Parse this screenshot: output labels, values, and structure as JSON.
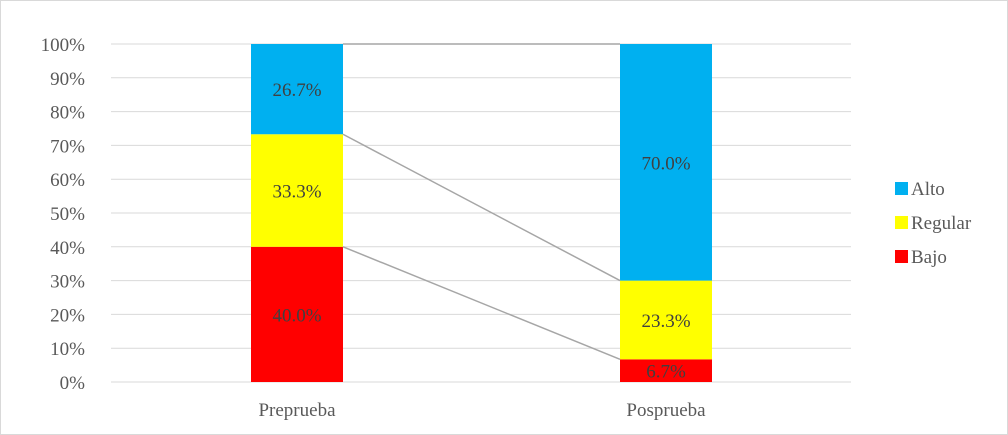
{
  "chart_data": {
    "type": "bar",
    "stacked": true,
    "stacking": "percent",
    "categories": [
      "Preprueba",
      "Posprueba"
    ],
    "series": [
      {
        "name": "Bajo",
        "values": [
          40.0,
          6.7
        ],
        "labels": [
          "40.0%",
          "6.7%"
        ],
        "color": "#ff0000"
      },
      {
        "name": "Regular",
        "values": [
          33.3,
          23.3
        ],
        "labels": [
          "33.3%",
          "23.3%"
        ],
        "color": "#ffff00"
      },
      {
        "name": "Alto",
        "values": [
          26.7,
          70.0
        ],
        "labels": [
          "26.7%",
          "70.0%"
        ],
        "color": "#00b0f0"
      }
    ],
    "series_lines": true,
    "ylim": [
      0,
      100
    ],
    "yticks": [
      "0%",
      "10%",
      "20%",
      "30%",
      "40%",
      "50%",
      "60%",
      "70%",
      "80%",
      "90%",
      "100%"
    ],
    "grid": true,
    "legend": "right",
    "legend_order": [
      "Alto",
      "Regular",
      "Bajo"
    ],
    "title": "",
    "xlabel": "",
    "ylabel": ""
  }
}
